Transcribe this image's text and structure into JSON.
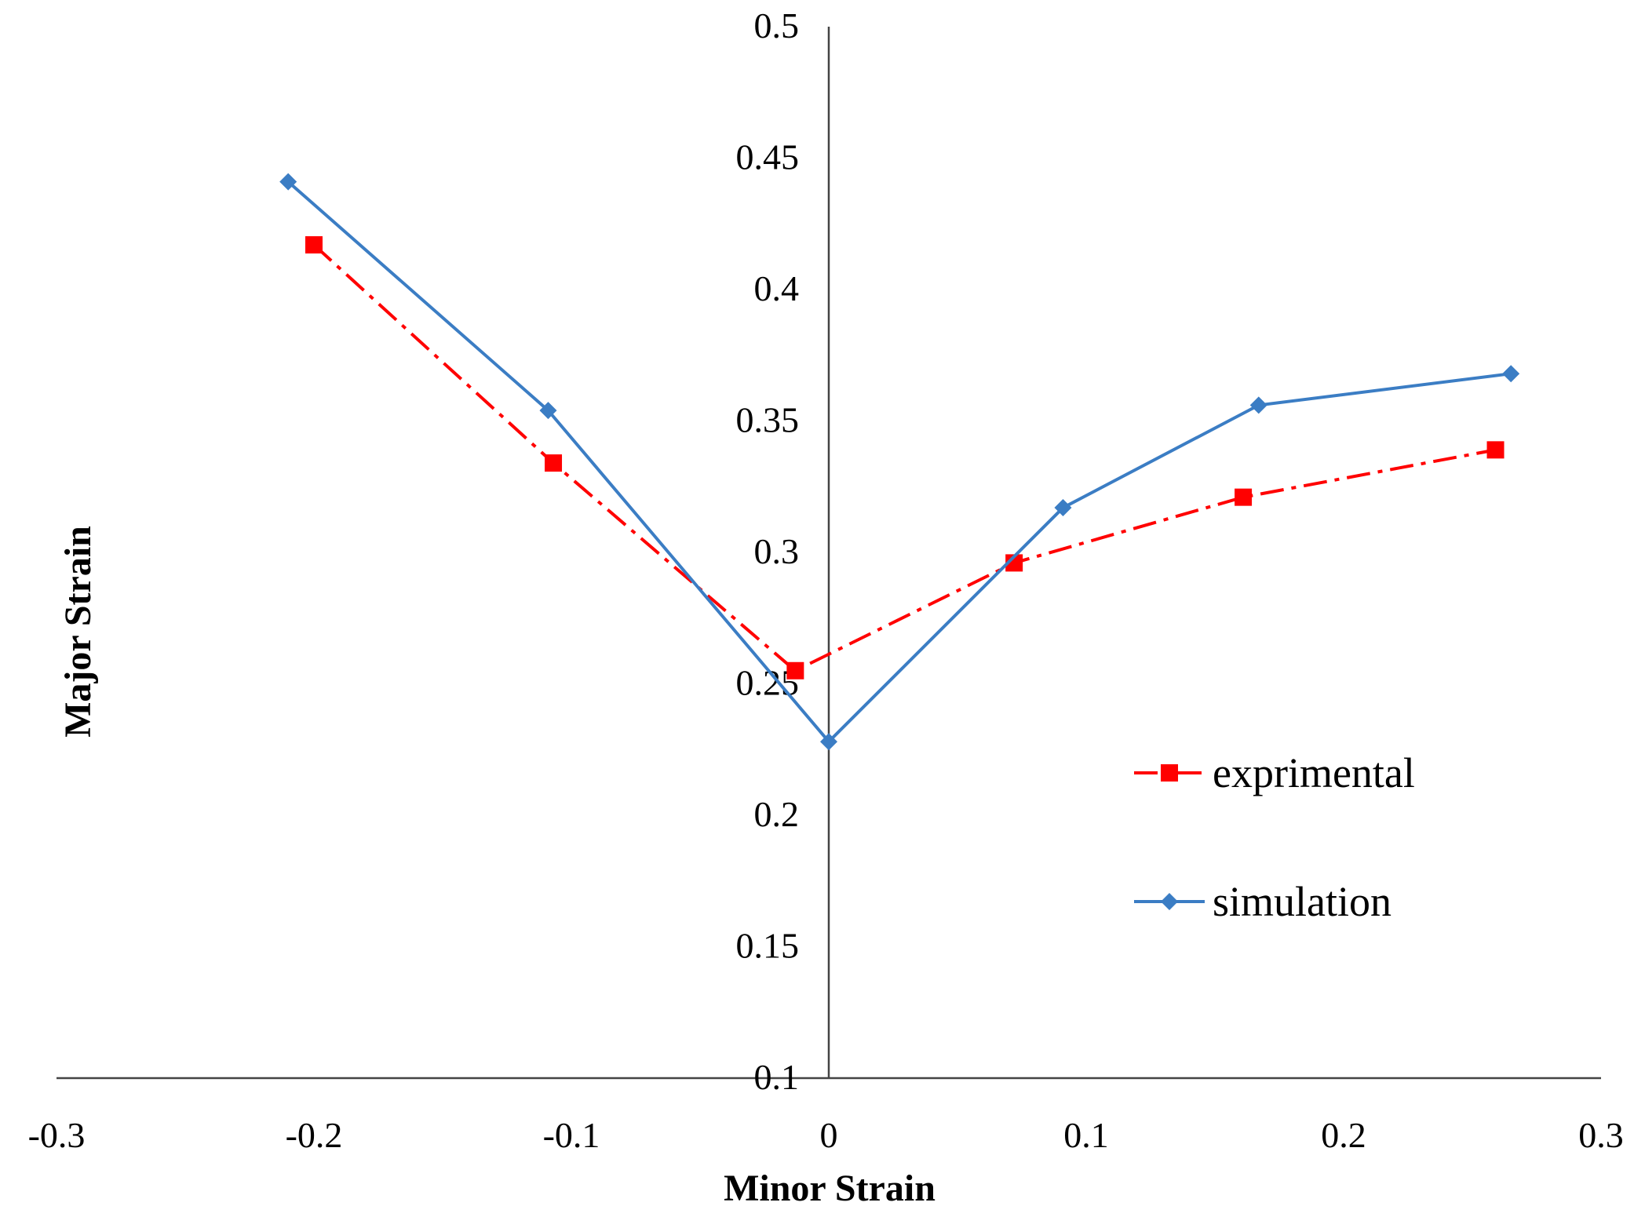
{
  "chart_data": {
    "type": "line",
    "title": "",
    "xlabel": "Minor Strain",
    "ylabel": "Major Strain",
    "xlim": [
      -0.3,
      0.3
    ],
    "ylim": [
      0.1,
      0.5
    ],
    "x_ticks": [
      "-0.3",
      "-0.2",
      "-0.1",
      "0",
      "0.1",
      "0.2",
      "0.3"
    ],
    "y_ticks": [
      "0.1",
      "0.15",
      "0.2",
      "0.25",
      "0.3",
      "0.35",
      "0.4",
      "0.45",
      "0.5"
    ],
    "grid": false,
    "legend_position": "right",
    "series": [
      {
        "name": "exprimental",
        "color": "#ff0000",
        "line_style": "dash-dot",
        "marker": "square",
        "x": [
          -0.2,
          -0.107,
          -0.013,
          0.072,
          0.161,
          0.259
        ],
        "y": [
          0.417,
          0.334,
          0.255,
          0.296,
          0.321,
          0.339
        ]
      },
      {
        "name": "simulation",
        "color": "#3b7dc4",
        "line_style": "solid",
        "marker": "diamond",
        "x": [
          -0.21,
          -0.109,
          0.0,
          0.091,
          0.167,
          0.265
        ],
        "y": [
          0.441,
          0.354,
          0.228,
          0.317,
          0.356,
          0.368
        ]
      }
    ]
  }
}
